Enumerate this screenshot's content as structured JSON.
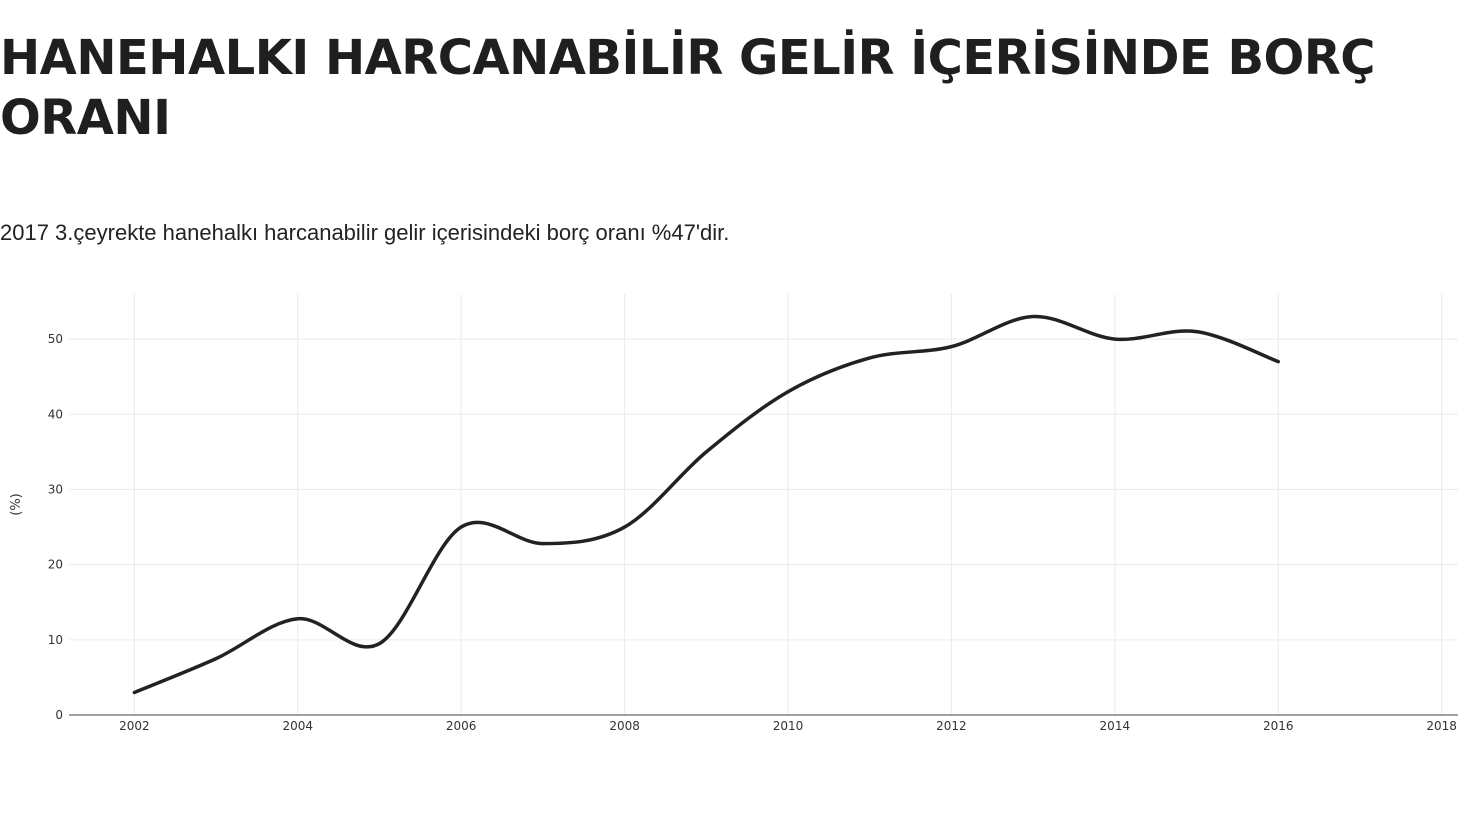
{
  "header": {
    "title": "HANEHALKI HARCANABİLİR GELİR İÇERİSİNDE BORÇ ORANI",
    "subtitle": "2017 3.çeyrekte hanehalkı harcanabilir gelir içerisindeki borç oranı %47'dir."
  },
  "chart_data": {
    "type": "line",
    "ylabel": "(%)",
    "xlim": [
      2001.2,
      2018.2
    ],
    "ylim": [
      0,
      56
    ],
    "x_ticks": [
      2002,
      2004,
      2006,
      2008,
      2010,
      2012,
      2014,
      2016,
      2018
    ],
    "y_ticks": [
      0,
      10,
      20,
      30,
      40,
      50
    ],
    "grid": true,
    "line_color": "#222222",
    "grid_color": "#ebebeb",
    "series": [
      {
        "x": [
          2002,
          2003,
          2004,
          2005,
          2006,
          2007,
          2008,
          2009,
          2010,
          2011,
          2012,
          2013,
          2014,
          2015,
          2016
        ],
        "values": [
          3,
          7.5,
          12.8,
          9.5,
          25,
          22.8,
          25,
          35,
          43,
          47.5,
          49,
          53,
          50,
          51,
          47
        ]
      }
    ]
  }
}
